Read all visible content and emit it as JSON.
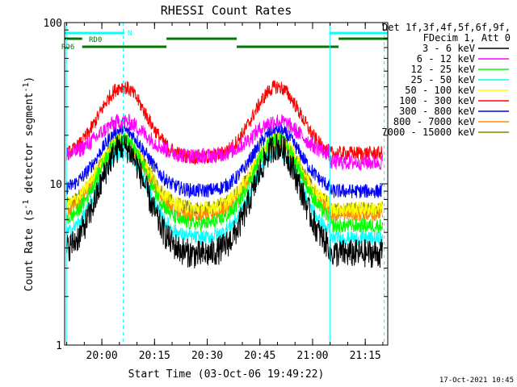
{
  "chart_data": {
    "type": "line",
    "title": "RHESSI Count Rates",
    "xlabel": "Start Time (03-Oct-06 19:49:22)",
    "ylabel": "Count Rate (s⁻¹ detector segment⁻¹)",
    "ylabel_main": "Count Rate (s",
    "ylabel_sup1": "-1",
    "ylabel_mid": " detector segment",
    "ylabel_sup2": "-1",
    "ylabel_end": ")",
    "yscale": "log",
    "x_range_minutes": [
      0,
      92
    ],
    "ylim": [
      1,
      100
    ],
    "x_ticks": [
      {
        "label": "20:00",
        "minutes": 10.6
      },
      {
        "label": "20:15",
        "minutes": 25.6
      },
      {
        "label": "20:30",
        "minutes": 40.6
      },
      {
        "label": "20:45",
        "minutes": 55.6
      },
      {
        "label": "21:00",
        "minutes": 70.6
      },
      {
        "label": "21:15",
        "minutes": 85.6
      }
    ],
    "y_ticks": [
      {
        "label": "100",
        "value": 100
      },
      {
        "label": "10",
        "value": 10
      },
      {
        "label": "1",
        "value": 1
      }
    ],
    "legend": {
      "header1": "Det 1f,3f,4f,5f,6f,9f,",
      "header2": "FDecim 1, Att 0",
      "placement": "outside-right"
    },
    "series": [
      {
        "name": "3 - 6 keV",
        "color": "#000000",
        "peak": 17,
        "base": 3.6,
        "post": 3.7
      },
      {
        "name": "6 - 12 keV",
        "color": "#ff00ff",
        "peak": 24.5,
        "base": 14.8,
        "post": 13.6
      },
      {
        "name": "12 - 25 keV",
        "color": "#00ff00",
        "peak": 19,
        "base": 5.6,
        "post": 5.5
      },
      {
        "name": "25 - 50 keV",
        "color": "#00ffff",
        "peak": 16,
        "base": 4.6,
        "post": 4.6
      },
      {
        "name": "50 - 100 keV",
        "color": "#ffff00",
        "peak": 19,
        "base": 7,
        "post": 7
      },
      {
        "name": "100 - 300 keV",
        "color": "#ff0000",
        "peak": 40,
        "base": 14.5,
        "post": 15.5
      },
      {
        "name": "300 - 800 keV",
        "color": "#0000ff",
        "peak": 21.5,
        "base": 9,
        "post": 9
      },
      {
        "name": "800 - 7000 keV",
        "color": "#ff8c00",
        "peak": 18,
        "base": 6.4,
        "post": 6.5
      },
      {
        "name": "7000 - 15000 keV",
        "color": "#808000",
        "peak": 18.5,
        "base": 7,
        "post": 7
      }
    ],
    "peaks_minutes": [
      16.5,
      60.5
    ],
    "drop_minutes": 75.5,
    "vertical_lines": [
      {
        "minutes": 0.5,
        "style": "solid"
      },
      {
        "minutes": 16.7,
        "style": "dashed"
      },
      {
        "minutes": 75.5,
        "style": "solid"
      },
      {
        "minutes": 91,
        "style": "dashed"
      }
    ],
    "flag_bars": [
      {
        "label": "N",
        "color": "#00ffff",
        "row": 1,
        "segments": [
          [
            0,
            17
          ],
          [
            75.5,
            92
          ]
        ]
      },
      {
        "label": "RD0",
        "color": "#007700",
        "row": 2,
        "segments": [
          [
            0,
            5
          ],
          [
            29,
            49
          ],
          [
            78,
            92
          ]
        ]
      },
      {
        "label": "RD6",
        "color": "#007700",
        "row": 3,
        "segments": [
          [
            5,
            29
          ],
          [
            49,
            78
          ]
        ]
      }
    ]
  },
  "footer": {
    "timestamp": "17-Oct-2021 10:45"
  }
}
